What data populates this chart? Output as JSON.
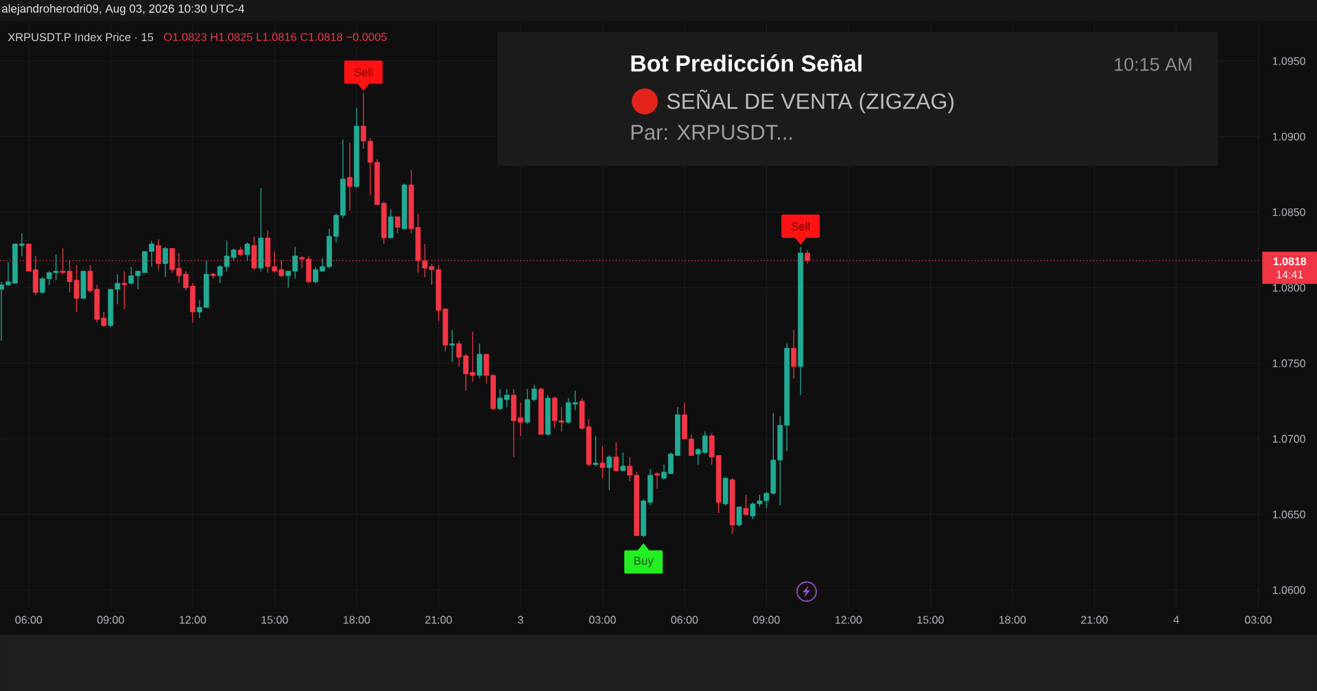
{
  "chart_data": {
    "type": "candlestick",
    "title": "XRPUSDT.P Index Price · 15",
    "subtitle": "O1.0823 H1.0825 L1.0816 C1.0818 −0.0005",
    "x": [
      "2026-08-02T05:00",
      "2026-08-02T05:15",
      "2026-08-02T05:30",
      "2026-08-02T05:45",
      "2026-08-02T06:00",
      "2026-08-02T06:15",
      "2026-08-02T06:30",
      "2026-08-02T06:45",
      "2026-08-02T07:00",
      "2026-08-02T07:15",
      "2026-08-02T07:30",
      "2026-08-02T07:45",
      "2026-08-02T08:00",
      "2026-08-02T08:15",
      "2026-08-02T08:30",
      "2026-08-02T08:45",
      "2026-08-02T09:00",
      "2026-08-02T09:15",
      "2026-08-02T09:30",
      "2026-08-02T09:45",
      "2026-08-02T10:00",
      "2026-08-02T10:15",
      "2026-08-02T10:30",
      "2026-08-02T10:45",
      "2026-08-02T11:00",
      "2026-08-02T11:15",
      "2026-08-02T11:30",
      "2026-08-02T11:45",
      "2026-08-02T12:00",
      "2026-08-02T12:15",
      "2026-08-02T12:30",
      "2026-08-02T12:45",
      "2026-08-02T13:00",
      "2026-08-02T13:15",
      "2026-08-02T13:30",
      "2026-08-02T13:45",
      "2026-08-02T14:00",
      "2026-08-02T14:15",
      "2026-08-02T14:30",
      "2026-08-02T14:45",
      "2026-08-02T15:00",
      "2026-08-02T15:15",
      "2026-08-02T15:30",
      "2026-08-02T15:45",
      "2026-08-02T16:00",
      "2026-08-02T16:15",
      "2026-08-02T16:30",
      "2026-08-02T16:45",
      "2026-08-02T17:00",
      "2026-08-02T17:15",
      "2026-08-02T17:30",
      "2026-08-02T17:45",
      "2026-08-02T18:00",
      "2026-08-02T18:15",
      "2026-08-02T18:30",
      "2026-08-02T18:45",
      "2026-08-02T19:00",
      "2026-08-02T19:15",
      "2026-08-02T19:30",
      "2026-08-02T19:45",
      "2026-08-02T20:00",
      "2026-08-02T20:15",
      "2026-08-02T20:30",
      "2026-08-02T20:45",
      "2026-08-02T21:00",
      "2026-08-02T21:15",
      "2026-08-02T21:30",
      "2026-08-02T21:45",
      "2026-08-02T22:00",
      "2026-08-02T22:15",
      "2026-08-02T22:30",
      "2026-08-02T22:45",
      "2026-08-02T23:00",
      "2026-08-02T23:15",
      "2026-08-02T23:30",
      "2026-08-02T23:45",
      "2026-08-03T00:00",
      "2026-08-03T00:15",
      "2026-08-03T00:30",
      "2026-08-03T00:45",
      "2026-08-03T01:00",
      "2026-08-03T01:15",
      "2026-08-03T01:30",
      "2026-08-03T01:45",
      "2026-08-03T02:00",
      "2026-08-03T02:15",
      "2026-08-03T02:30",
      "2026-08-03T02:45",
      "2026-08-03T03:00",
      "2026-08-03T03:15",
      "2026-08-03T03:30",
      "2026-08-03T03:45",
      "2026-08-03T04:00",
      "2026-08-03T04:15",
      "2026-08-03T04:30",
      "2026-08-03T04:45",
      "2026-08-03T05:00",
      "2026-08-03T05:15",
      "2026-08-03T05:30",
      "2026-08-03T05:45",
      "2026-08-03T06:00",
      "2026-08-03T06:15",
      "2026-08-03T06:30",
      "2026-08-03T06:45",
      "2026-08-03T07:00",
      "2026-08-03T07:15",
      "2026-08-03T07:30",
      "2026-08-03T07:45",
      "2026-08-03T08:00",
      "2026-08-03T08:15",
      "2026-08-03T08:30",
      "2026-08-03T08:45",
      "2026-08-03T09:00",
      "2026-08-03T09:15",
      "2026-08-03T09:30",
      "2026-08-03T09:45",
      "2026-08-03T10:00",
      "2026-08-03T10:15",
      "2026-08-03T10:30"
    ],
    "ohlc": [
      [
        1.0799,
        1.0804,
        1.0765,
        1.0802
      ],
      [
        1.0802,
        1.0817,
        1.0801,
        1.0804
      ],
      [
        1.0803,
        1.0829,
        1.0803,
        1.0829
      ],
      [
        1.0828,
        1.0836,
        1.0821,
        1.0829
      ],
      [
        1.0829,
        1.0829,
        1.0811,
        1.0811
      ],
      [
        1.0812,
        1.0821,
        1.0795,
        1.0797
      ],
      [
        1.0797,
        1.0807,
        1.0796,
        1.0806
      ],
      [
        1.0806,
        1.0811,
        1.0802,
        1.081
      ],
      [
        1.081,
        1.0822,
        1.0805,
        1.0811
      ],
      [
        1.0811,
        1.0826,
        1.0809,
        1.081
      ],
      [
        1.0811,
        1.0818,
        1.0797,
        1.0804
      ],
      [
        1.0805,
        1.0815,
        1.0784,
        1.0793
      ],
      [
        1.0793,
        1.0811,
        1.0793,
        1.0811
      ],
      [
        1.0811,
        1.0815,
        1.0797,
        1.0798
      ],
      [
        1.0799,
        1.0802,
        1.0777,
        1.0779
      ],
      [
        1.078,
        1.0784,
        1.0774,
        1.0775
      ],
      [
        1.0775,
        1.0799,
        1.0774,
        1.0799
      ],
      [
        1.0799,
        1.0809,
        1.0789,
        1.0803
      ],
      [
        1.0803,
        1.0811,
        1.0786,
        1.0802
      ],
      [
        1.0803,
        1.0814,
        1.0802,
        1.0808
      ],
      [
        1.0808,
        1.0811,
        1.0799,
        1.0811
      ],
      [
        1.081,
        1.0824,
        1.081,
        1.0824
      ],
      [
        1.0824,
        1.0831,
        1.0814,
        1.0829
      ],
      [
        1.0828,
        1.0832,
        1.0812,
        1.0816
      ],
      [
        1.0816,
        1.0827,
        1.0807,
        1.0826
      ],
      [
        1.0826,
        1.0826,
        1.081,
        1.0812
      ],
      [
        1.0813,
        1.0823,
        1.0803,
        1.0808
      ],
      [
        1.0809,
        1.0811,
        1.0798,
        1.08
      ],
      [
        1.0801,
        1.0803,
        1.0777,
        1.0784
      ],
      [
        1.0784,
        1.0792,
        1.078,
        1.0787
      ],
      [
        1.0787,
        1.0818,
        1.0787,
        1.0809
      ],
      [
        1.0809,
        1.081,
        1.0806,
        1.0808
      ],
      [
        1.0808,
        1.0815,
        1.0803,
        1.0814
      ],
      [
        1.0814,
        1.0831,
        1.0811,
        1.0821
      ],
      [
        1.082,
        1.0826,
        1.0818,
        1.0825
      ],
      [
        1.0825,
        1.0827,
        1.0821,
        1.0822
      ],
      [
        1.0822,
        1.083,
        1.0818,
        1.0829
      ],
      [
        1.0828,
        1.0834,
        1.0812,
        1.0813
      ],
      [
        1.0813,
        1.0866,
        1.0811,
        1.0833
      ],
      [
        1.0833,
        1.0838,
        1.081,
        1.0814
      ],
      [
        1.0814,
        1.0824,
        1.081,
        1.0811
      ],
      [
        1.0812,
        1.0818,
        1.0807,
        1.0808
      ],
      [
        1.0808,
        1.0811,
        1.08,
        1.0811
      ],
      [
        1.0811,
        1.0827,
        1.0806,
        1.0821
      ],
      [
        1.082,
        1.0821,
        1.0813,
        1.0819
      ],
      [
        1.0819,
        1.0821,
        1.0803,
        1.0804
      ],
      [
        1.0804,
        1.0814,
        1.0803,
        1.0812
      ],
      [
        1.0811,
        1.082,
        1.0811,
        1.0814
      ],
      [
        1.0814,
        1.0839,
        1.0813,
        1.0834
      ],
      [
        1.0834,
        1.0849,
        1.083,
        1.0848
      ],
      [
        1.0848,
        1.0898,
        1.0846,
        1.0872
      ],
      [
        1.0873,
        1.0896,
        1.0851,
        1.0867
      ],
      [
        1.0867,
        1.0919,
        1.0866,
        1.0907
      ],
      [
        1.0907,
        1.0929,
        1.0892,
        1.0897
      ],
      [
        1.0897,
        1.0899,
        1.0861,
        1.0883
      ],
      [
        1.0883,
        1.0885,
        1.0855,
        1.0855
      ],
      [
        1.0856,
        1.0857,
        1.0829,
        1.0833
      ],
      [
        1.0833,
        1.0852,
        1.0833,
        1.0847
      ],
      [
        1.0847,
        1.0847,
        1.0836,
        1.084
      ],
      [
        1.0839,
        1.0869,
        1.0839,
        1.0868
      ],
      [
        1.0868,
        1.0878,
        1.0836,
        1.0839
      ],
      [
        1.084,
        1.0849,
        1.081,
        1.0818
      ],
      [
        1.0818,
        1.0829,
        1.0807,
        1.0813
      ],
      [
        1.0814,
        1.0816,
        1.0802,
        1.0812
      ],
      [
        1.0812,
        1.0815,
        1.0778,
        1.0785
      ],
      [
        1.0786,
        1.0786,
        1.0758,
        1.0762
      ],
      [
        1.0762,
        1.0772,
        1.0751,
        1.0763
      ],
      [
        1.0763,
        1.0765,
        1.0748,
        1.0754
      ],
      [
        1.0755,
        1.0756,
        1.0732,
        1.0743
      ],
      [
        1.0744,
        1.0771,
        1.0738,
        1.0742
      ],
      [
        1.0742,
        1.0763,
        1.074,
        1.0756
      ],
      [
        1.0756,
        1.0756,
        1.0737,
        1.0742
      ],
      [
        1.0742,
        1.0743,
        1.0719,
        1.072
      ],
      [
        1.072,
        1.0733,
        1.0719,
        1.0727
      ],
      [
        1.0726,
        1.0733,
        1.0721,
        1.0729
      ],
      [
        1.0729,
        1.0733,
        1.0688,
        1.0712
      ],
      [
        1.0714,
        1.0724,
        1.0702,
        1.0711
      ],
      [
        1.0711,
        1.0733,
        1.071,
        1.0726
      ],
      [
        1.0726,
        1.0736,
        1.0725,
        1.0733
      ],
      [
        1.0733,
        1.0734,
        1.0703,
        1.0703
      ],
      [
        1.0703,
        1.0729,
        1.0702,
        1.0727
      ],
      [
        1.0727,
        1.0728,
        1.0707,
        1.0712
      ],
      [
        1.0712,
        1.0721,
        1.0705,
        1.0711
      ],
      [
        1.0711,
        1.0727,
        1.071,
        1.0724
      ],
      [
        1.0723,
        1.0732,
        1.0719,
        1.0724
      ],
      [
        1.0725,
        1.0727,
        1.0706,
        1.0707
      ],
      [
        1.0708,
        1.0713,
        1.0682,
        1.0683
      ],
      [
        1.0683,
        1.0702,
        1.0682,
        1.0684
      ],
      [
        1.0684,
        1.0695,
        1.0674,
        1.0681
      ],
      [
        1.0681,
        1.0689,
        1.0666,
        1.0688
      ],
      [
        1.0688,
        1.0698,
        1.0678,
        1.0679
      ],
      [
        1.0679,
        1.0691,
        1.0679,
        1.0682
      ],
      [
        1.0682,
        1.0688,
        1.0672,
        1.0676
      ],
      [
        1.0676,
        1.0678,
        1.0636,
        1.0636
      ],
      [
        1.0636,
        1.066,
        1.0635,
        1.0659
      ],
      [
        1.0658,
        1.068,
        1.0656,
        1.0676
      ],
      [
        1.0677,
        1.0678,
        1.0667,
        1.0676
      ],
      [
        1.0674,
        1.0683,
        1.0673,
        1.0678
      ],
      [
        1.0677,
        1.0691,
        1.0677,
        1.069
      ],
      [
        1.0689,
        1.0721,
        1.0689,
        1.0716
      ],
      [
        1.0716,
        1.0724,
        1.07,
        1.07
      ],
      [
        1.07,
        1.0703,
        1.0689,
        1.0689
      ],
      [
        1.069,
        1.0694,
        1.0683,
        1.0693
      ],
      [
        1.0691,
        1.0705,
        1.069,
        1.0702
      ],
      [
        1.0702,
        1.0704,
        1.0683,
        1.0688
      ],
      [
        1.0689,
        1.0689,
        1.0651,
        1.0658
      ],
      [
        1.0657,
        1.0675,
        1.0656,
        1.0674
      ],
      [
        1.0673,
        1.0674,
        1.0637,
        1.0643
      ],
      [
        1.0643,
        1.0655,
        1.0642,
        1.0655
      ],
      [
        1.0654,
        1.0663,
        1.0649,
        1.065
      ],
      [
        1.0649,
        1.0658,
        1.0647,
        1.0657
      ],
      [
        1.0657,
        1.0663,
        1.0655,
        1.0659
      ],
      [
        1.0659,
        1.0665,
        1.0654,
        1.0664
      ],
      [
        1.0664,
        1.0717,
        1.0663,
        1.0686
      ],
      [
        1.0686,
        1.0715,
        1.0656,
        1.0709
      ],
      [
        1.0709,
        1.0763,
        1.0692,
        1.076
      ],
      [
        1.076,
        1.0772,
        1.074,
        1.0748
      ],
      [
        1.0748,
        1.0827,
        1.0729,
        1.0823
      ],
      [
        1.0823,
        1.0825,
        1.0816,
        1.0818
      ]
    ],
    "colors": [
      "#22ab94",
      "#22ab94",
      "#22ab94",
      "#22ab94",
      "#f23645",
      "#f23645",
      "#22ab94",
      "#22ab94",
      "#22ab94",
      "#f23645",
      "#f23645",
      "#f23645",
      "#22ab94",
      "#f23645",
      "#f23645",
      "#f23645",
      "#22ab94",
      "#22ab94",
      "#f23645",
      "#22ab94",
      "#22ab94",
      "#22ab94",
      "#22ab94",
      "#f23645",
      "#22ab94",
      "#f23645",
      "#f23645",
      "#f23645",
      "#f23645",
      "#22ab94",
      "#22ab94",
      "#f23645",
      "#22ab94",
      "#22ab94",
      "#22ab94",
      "#f23645",
      "#22ab94",
      "#f23645",
      "#22ab94",
      "#f23645",
      "#f23645",
      "#f23645",
      "#22ab94",
      "#22ab94",
      "#f23645",
      "#f23645",
      "#22ab94",
      "#22ab94",
      "#22ab94",
      "#22ab94",
      "#22ab94",
      "#f23645",
      "#22ab94",
      "#f23645",
      "#f23645",
      "#f23645",
      "#f23645",
      "#22ab94",
      "#f23645",
      "#22ab94",
      "#f23645",
      "#f23645",
      "#f23645",
      "#f23645",
      "#f23645",
      "#f23645",
      "#22ab94",
      "#f23645",
      "#f23645",
      "#f23645",
      "#22ab94",
      "#f23645",
      "#f23645",
      "#22ab94",
      "#22ab94",
      "#f23645",
      "#f23645",
      "#22ab94",
      "#22ab94",
      "#f23645",
      "#22ab94",
      "#f23645",
      "#f23645",
      "#22ab94",
      "#22ab94",
      "#f23645",
      "#f23645",
      "#22ab94",
      "#f23645",
      "#22ab94",
      "#f23645",
      "#22ab94",
      "#f23645",
      "#f23645",
      "#22ab94",
      "#22ab94",
      "#f23645",
      "#22ab94",
      "#22ab94",
      "#22ab94",
      "#f23645",
      "#f23645",
      "#22ab94",
      "#22ab94",
      "#f23645",
      "#f23645",
      "#22ab94",
      "#f23645",
      "#22ab94",
      "#f23645",
      "#22ab94",
      "#22ab94",
      "#22ab94",
      "#22ab94",
      "#22ab94",
      "#22ab94",
      "#f23645",
      "#22ab94",
      "#f23645"
    ],
    "xlim": [
      "2026-08-02T04:57",
      "2026-08-04T03:04"
    ],
    "ylim": [
      1.0589,
      1.0975
    ],
    "xticks": [
      {
        "value": "2026-08-02T06:00",
        "label": "06:00"
      },
      {
        "value": "2026-08-02T09:00",
        "label": "09:00"
      },
      {
        "value": "2026-08-02T12:00",
        "label": "12:00"
      },
      {
        "value": "2026-08-02T15:00",
        "label": "15:00"
      },
      {
        "value": "2026-08-02T18:00",
        "label": "18:00"
      },
      {
        "value": "2026-08-02T21:00",
        "label": "21:00"
      },
      {
        "value": "2026-08-03T00:00",
        "label": "3"
      },
      {
        "value": "2026-08-03T03:00",
        "label": "03:00"
      },
      {
        "value": "2026-08-03T06:00",
        "label": "06:00"
      },
      {
        "value": "2026-08-03T09:00",
        "label": "09:00"
      },
      {
        "value": "2026-08-03T12:00",
        "label": "12:00"
      },
      {
        "value": "2026-08-03T15:00",
        "label": "15:00"
      },
      {
        "value": "2026-08-03T18:00",
        "label": "18:00"
      },
      {
        "value": "2026-08-03T21:00",
        "label": "21:00"
      },
      {
        "value": "2026-08-04T00:00",
        "label": "4"
      },
      {
        "value": "2026-08-04T03:00",
        "label": "03:00"
      }
    ],
    "yticks": [
      {
        "value": 1.06,
        "label": "1.0600"
      },
      {
        "value": 1.065,
        "label": "1.0650"
      },
      {
        "value": 1.07,
        "label": "1.0700"
      },
      {
        "value": 1.075,
        "label": "1.0750"
      },
      {
        "value": 1.08,
        "label": "1.0800"
      },
      {
        "value": 1.085,
        "label": "1.0850"
      },
      {
        "value": 1.09,
        "label": "1.0900"
      },
      {
        "value": 1.095,
        "label": "1.0950"
      }
    ],
    "grid": true,
    "ref_lines": [
      {
        "axis": "y",
        "value": 1.0818,
        "label": "1.0818",
        "color": "#f23645",
        "line_style": "dotted"
      }
    ],
    "annotations": [
      "alejandroherodri09, Aug 03, 2026 10:30 UTC-4",
      "Bot Predicción Señal",
      "10:15 AM",
      "SEÑAL DE VENTA (ZIGZAG)",
      "Par: XRPUSDT...",
      "14:41",
      {
        "text": "Sell",
        "x": "2026-08-02T18:15",
        "y": 1.0929
      },
      {
        "text": "Buy",
        "x": "2026-08-03T04:30",
        "y": 1.0635
      },
      {
        "text": "Sell",
        "x": "2026-08-03T10:15",
        "y": 1.0827
      }
    ]
  }
}
